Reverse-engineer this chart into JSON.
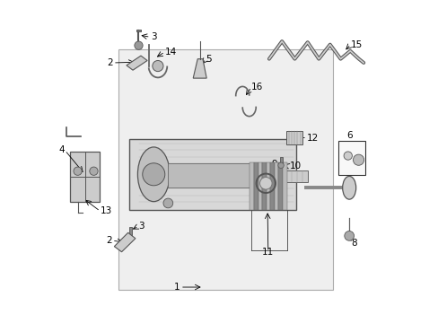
{
  "bg_color": "#ffffff",
  "fig_w": 4.89,
  "fig_h": 3.6,
  "dpi": 100,
  "panel_bg": "#efefef",
  "panel_edge": "#aaaaaa",
  "rack_bg": "#d8d8d8",
  "dark": "#555555",
  "mid": "#888888",
  "light": "#cccccc",
  "label_fs": 7.5
}
